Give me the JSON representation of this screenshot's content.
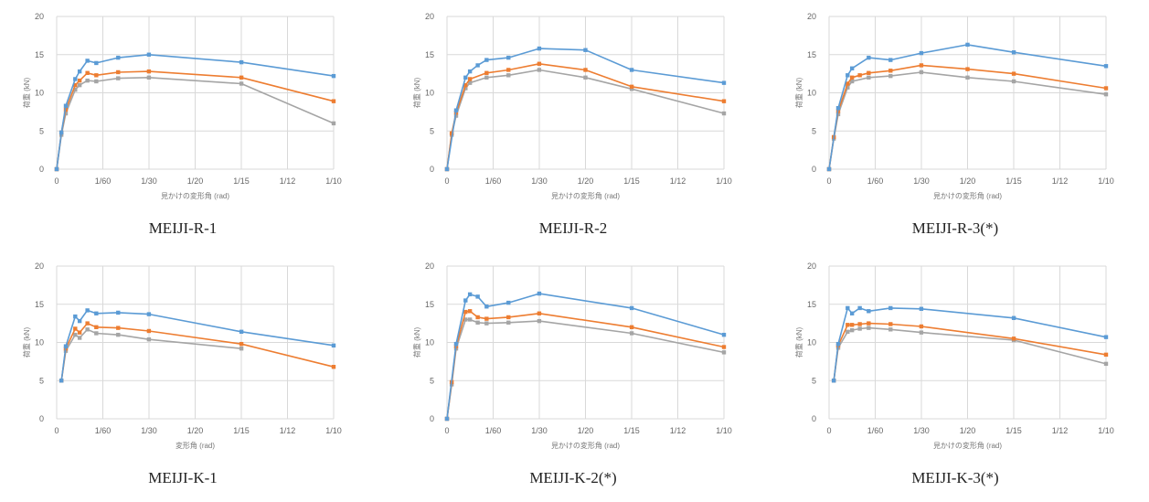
{
  "colors": {
    "upper": "#5b9bd5",
    "middle": "#ed7d31",
    "lower": "#a5a5a5",
    "grid": "#d9d9d9"
  },
  "chart_data": [
    {
      "type": "line",
      "caption": "MEIJI-R-1",
      "xlabel": "見かけの変形角 (rad)",
      "ylabel": "荷重 (kN)",
      "ylim": [
        0,
        20
      ],
      "yticks": [
        "0",
        "5",
        "10",
        "15",
        "20"
      ],
      "xticks": [
        "0",
        "1/60",
        "1/30",
        "1/20",
        "1/15",
        "1/12",
        "1/10"
      ],
      "xlim": [
        0,
        0.1
      ],
      "series": [
        {
          "values": [
            [
              0,
              0
            ],
            [
              0.0017,
              4.8
            ],
            [
              0.0033,
              8.3
            ],
            [
              0.0067,
              11.8
            ],
            [
              0.0083,
              12.8
            ],
            [
              0.0111,
              14.2
            ],
            [
              0.0143,
              13.9
            ],
            [
              0.0222,
              14.6
            ],
            [
              0.0333,
              15.0
            ],
            [
              0.0667,
              14.0
            ],
            [
              0.1,
              12.2
            ]
          ]
        },
        {
          "values": [
            [
              0,
              0
            ],
            [
              0.0017,
              4.8
            ],
            [
              0.0033,
              7.8
            ],
            [
              0.0067,
              11.0
            ],
            [
              0.0083,
              11.6
            ],
            [
              0.0111,
              12.6
            ],
            [
              0.0143,
              12.3
            ],
            [
              0.0222,
              12.7
            ],
            [
              0.0333,
              12.8
            ],
            [
              0.0667,
              12.0
            ],
            [
              0.1,
              8.9
            ]
          ]
        },
        {
          "values": [
            [
              0,
              0
            ],
            [
              0.0017,
              4.5
            ],
            [
              0.0033,
              7.3
            ],
            [
              0.0067,
              10.4
            ],
            [
              0.0083,
              11.0
            ],
            [
              0.0111,
              11.6
            ],
            [
              0.0143,
              11.5
            ],
            [
              0.0222,
              11.9
            ],
            [
              0.0333,
              12.0
            ],
            [
              0.0667,
              11.2
            ],
            [
              0.1,
              6.0
            ]
          ]
        }
      ]
    },
    {
      "type": "line",
      "caption": "MEIJI-R-2",
      "xlabel": "見かけの変形角 (rad)",
      "ylabel": "荷重 (kN)",
      "ylim": [
        0,
        20
      ],
      "yticks": [
        "0",
        "5",
        "10",
        "15",
        "20"
      ],
      "xticks": [
        "0",
        "1/60",
        "1/30",
        "1/20",
        "1/15",
        "1/12",
        "1/10"
      ],
      "xlim": [
        0,
        0.1
      ],
      "series": [
        {
          "values": [
            [
              0,
              0
            ],
            [
              0.0033,
              7.7
            ],
            [
              0.0067,
              12.0
            ],
            [
              0.0083,
              12.8
            ],
            [
              0.0111,
              13.6
            ],
            [
              0.0143,
              14.3
            ],
            [
              0.0222,
              14.6
            ],
            [
              0.0333,
              15.8
            ],
            [
              0.05,
              15.6
            ],
            [
              0.0667,
              13.0
            ],
            [
              0.1,
              11.3
            ]
          ]
        },
        {
          "values": [
            [
              0,
              0
            ],
            [
              0.0017,
              4.7
            ],
            [
              0.0033,
              7.4
            ],
            [
              0.0067,
              11.0
            ],
            [
              0.0083,
              11.8
            ],
            [
              0.0143,
              12.6
            ],
            [
              0.0222,
              13.0
            ],
            [
              0.0333,
              13.8
            ],
            [
              0.05,
              13.0
            ],
            [
              0.0667,
              10.8
            ],
            [
              0.1,
              8.9
            ]
          ]
        },
        {
          "values": [
            [
              0,
              0
            ],
            [
              0.0017,
              4.5
            ],
            [
              0.0033,
              7.0
            ],
            [
              0.0067,
              10.6
            ],
            [
              0.0083,
              11.3
            ],
            [
              0.0143,
              12.0
            ],
            [
              0.0222,
              12.3
            ],
            [
              0.0333,
              13.0
            ],
            [
              0.05,
              12.0
            ],
            [
              0.0667,
              10.5
            ],
            [
              0.1,
              7.3
            ]
          ]
        }
      ]
    },
    {
      "type": "line",
      "caption": "MEIJI-R-3(*)",
      "xlabel": "見かけの変形角 (rad)",
      "ylabel": "荷重 (kN)",
      "ylim": [
        0,
        20
      ],
      "yticks": [
        "0",
        "5",
        "10",
        "15",
        "20"
      ],
      "xticks": [
        "0",
        "1/60",
        "1/30",
        "1/20",
        "1/15",
        "1/12",
        "1/10"
      ],
      "xlim": [
        0,
        0.1
      ],
      "series": [
        {
          "values": [
            [
              0,
              0
            ],
            [
              0.0033,
              8.0
            ],
            [
              0.0067,
              12.3
            ],
            [
              0.0083,
              13.2
            ],
            [
              0.0143,
              14.6
            ],
            [
              0.0222,
              14.3
            ],
            [
              0.0333,
              15.2
            ],
            [
              0.05,
              16.3
            ],
            [
              0.0667,
              15.3
            ],
            [
              0.1,
              13.5
            ]
          ]
        },
        {
          "values": [
            [
              0,
              0
            ],
            [
              0.0017,
              4.2
            ],
            [
              0.0033,
              7.6
            ],
            [
              0.0067,
              11.2
            ],
            [
              0.0083,
              12.0
            ],
            [
              0.0111,
              12.3
            ],
            [
              0.0143,
              12.6
            ],
            [
              0.0222,
              12.9
            ],
            [
              0.0333,
              13.6
            ],
            [
              0.05,
              13.1
            ],
            [
              0.0667,
              12.5
            ],
            [
              0.1,
              10.6
            ]
          ]
        },
        {
          "values": [
            [
              0,
              0
            ],
            [
              0.0017,
              4.0
            ],
            [
              0.0033,
              7.2
            ],
            [
              0.0067,
              10.7
            ],
            [
              0.0083,
              11.5
            ],
            [
              0.0143,
              12.0
            ],
            [
              0.0222,
              12.2
            ],
            [
              0.0333,
              12.7
            ],
            [
              0.05,
              12.0
            ],
            [
              0.0667,
              11.5
            ],
            [
              0.1,
              9.8
            ]
          ]
        }
      ]
    },
    {
      "type": "line",
      "caption": "MEIJI-K-1",
      "xlabel": "変形角 (rad)",
      "ylabel": "荷重 (kN)",
      "ylim": [
        0,
        20
      ],
      "yticks": [
        "0",
        "5",
        "10",
        "15",
        "20"
      ],
      "xticks": [
        "0",
        "1/60",
        "1/30",
        "1/20",
        "1/15",
        "1/12",
        "1/10"
      ],
      "xlim": [
        0,
        0.1
      ],
      "series": [
        {
          "values": [
            [
              0.0017,
              5.0
            ],
            [
              0.0033,
              9.5
            ],
            [
              0.0067,
              13.4
            ],
            [
              0.0083,
              12.8
            ],
            [
              0.0111,
              14.2
            ],
            [
              0.0143,
              13.8
            ],
            [
              0.0222,
              13.9
            ],
            [
              0.0333,
              13.7
            ],
            [
              0.0667,
              11.4
            ],
            [
              0.1,
              9.6
            ]
          ]
        },
        {
          "values": [
            [
              0.0017,
              5.0
            ],
            [
              0.0033,
              9.2
            ],
            [
              0.0067,
              11.8
            ],
            [
              0.0083,
              11.3
            ],
            [
              0.0111,
              12.5
            ],
            [
              0.0143,
              12.0
            ],
            [
              0.0222,
              11.9
            ],
            [
              0.0333,
              11.5
            ],
            [
              0.0667,
              9.8
            ],
            [
              0.1,
              6.8
            ]
          ]
        },
        {
          "values": [
            [
              0.0017,
              5.0
            ],
            [
              0.0033,
              8.9
            ],
            [
              0.0067,
              11.0
            ],
            [
              0.0083,
              10.6
            ],
            [
              0.0111,
              11.7
            ],
            [
              0.0143,
              11.2
            ],
            [
              0.0222,
              11.0
            ],
            [
              0.0333,
              10.4
            ],
            [
              0.0667,
              9.2
            ]
          ]
        }
      ]
    },
    {
      "type": "line",
      "caption": "MEIJI-K-2(*)",
      "xlabel": "見かけの変形角 (rad)",
      "ylabel": "荷重 (kN)",
      "ylim": [
        0,
        20
      ],
      "yticks": [
        "0",
        "5",
        "10",
        "15",
        "20"
      ],
      "xticks": [
        "0",
        "1/60",
        "1/30",
        "1/20",
        "1/15",
        "1/12",
        "1/10"
      ],
      "xlim": [
        0,
        0.1
      ],
      "series": [
        {
          "values": [
            [
              0,
              0
            ],
            [
              0.0033,
              9.8
            ],
            [
              0.0067,
              15.5
            ],
            [
              0.0083,
              16.3
            ],
            [
              0.0111,
              16.0
            ],
            [
              0.0143,
              14.7
            ],
            [
              0.0222,
              15.2
            ],
            [
              0.0333,
              16.4
            ],
            [
              0.0667,
              14.5
            ],
            [
              0.1,
              11.0
            ]
          ]
        },
        {
          "values": [
            [
              0,
              0
            ],
            [
              0.0017,
              4.8
            ],
            [
              0.0033,
              9.5
            ],
            [
              0.0067,
              14.0
            ],
            [
              0.0083,
              14.1
            ],
            [
              0.0111,
              13.3
            ],
            [
              0.0143,
              13.1
            ],
            [
              0.0222,
              13.3
            ],
            [
              0.0333,
              13.8
            ],
            [
              0.0667,
              12.0
            ],
            [
              0.1,
              9.4
            ]
          ]
        },
        {
          "values": [
            [
              0,
              0
            ],
            [
              0.0017,
              4.5
            ],
            [
              0.0033,
              9.2
            ],
            [
              0.0067,
              13.0
            ],
            [
              0.0083,
              13.0
            ],
            [
              0.0111,
              12.6
            ],
            [
              0.0143,
              12.5
            ],
            [
              0.0222,
              12.6
            ],
            [
              0.0333,
              12.8
            ],
            [
              0.0667,
              11.2
            ],
            [
              0.1,
              8.7
            ]
          ]
        }
      ]
    },
    {
      "type": "line",
      "caption": "MEIJI-K-3(*)",
      "xlabel": "見かけの変形角 (rad)",
      "ylabel": "荷重 (kN)",
      "ylim": [
        0,
        20
      ],
      "yticks": [
        "0",
        "5",
        "10",
        "15",
        "20"
      ],
      "xticks": [
        "0",
        "1/60",
        "1/30",
        "1/20",
        "1/15",
        "1/12",
        "1/10"
      ],
      "xlim": [
        0,
        0.1
      ],
      "series": [
        {
          "values": [
            [
              0.0017,
              5.0
            ],
            [
              0.0033,
              9.8
            ],
            [
              0.0067,
              14.5
            ],
            [
              0.0083,
              13.8
            ],
            [
              0.0111,
              14.5
            ],
            [
              0.0143,
              14.1
            ],
            [
              0.0222,
              14.5
            ],
            [
              0.0333,
              14.4
            ],
            [
              0.0667,
              13.2
            ],
            [
              0.1,
              10.7
            ]
          ]
        },
        {
          "values": [
            [
              0.0017,
              5.0
            ],
            [
              0.0033,
              9.6
            ],
            [
              0.0067,
              12.3
            ],
            [
              0.0083,
              12.3
            ],
            [
              0.0111,
              12.4
            ],
            [
              0.0143,
              12.5
            ],
            [
              0.0222,
              12.4
            ],
            [
              0.0333,
              12.1
            ],
            [
              0.0667,
              10.5
            ],
            [
              0.1,
              8.4
            ]
          ]
        },
        {
          "values": [
            [
              0.0017,
              5.0
            ],
            [
              0.0033,
              9.3
            ],
            [
              0.0067,
              11.4
            ],
            [
              0.0083,
              11.6
            ],
            [
              0.0111,
              11.8
            ],
            [
              0.0143,
              11.9
            ],
            [
              0.0222,
              11.7
            ],
            [
              0.0333,
              11.3
            ],
            [
              0.0667,
              10.3
            ],
            [
              0.1,
              7.2
            ]
          ]
        }
      ]
    }
  ]
}
